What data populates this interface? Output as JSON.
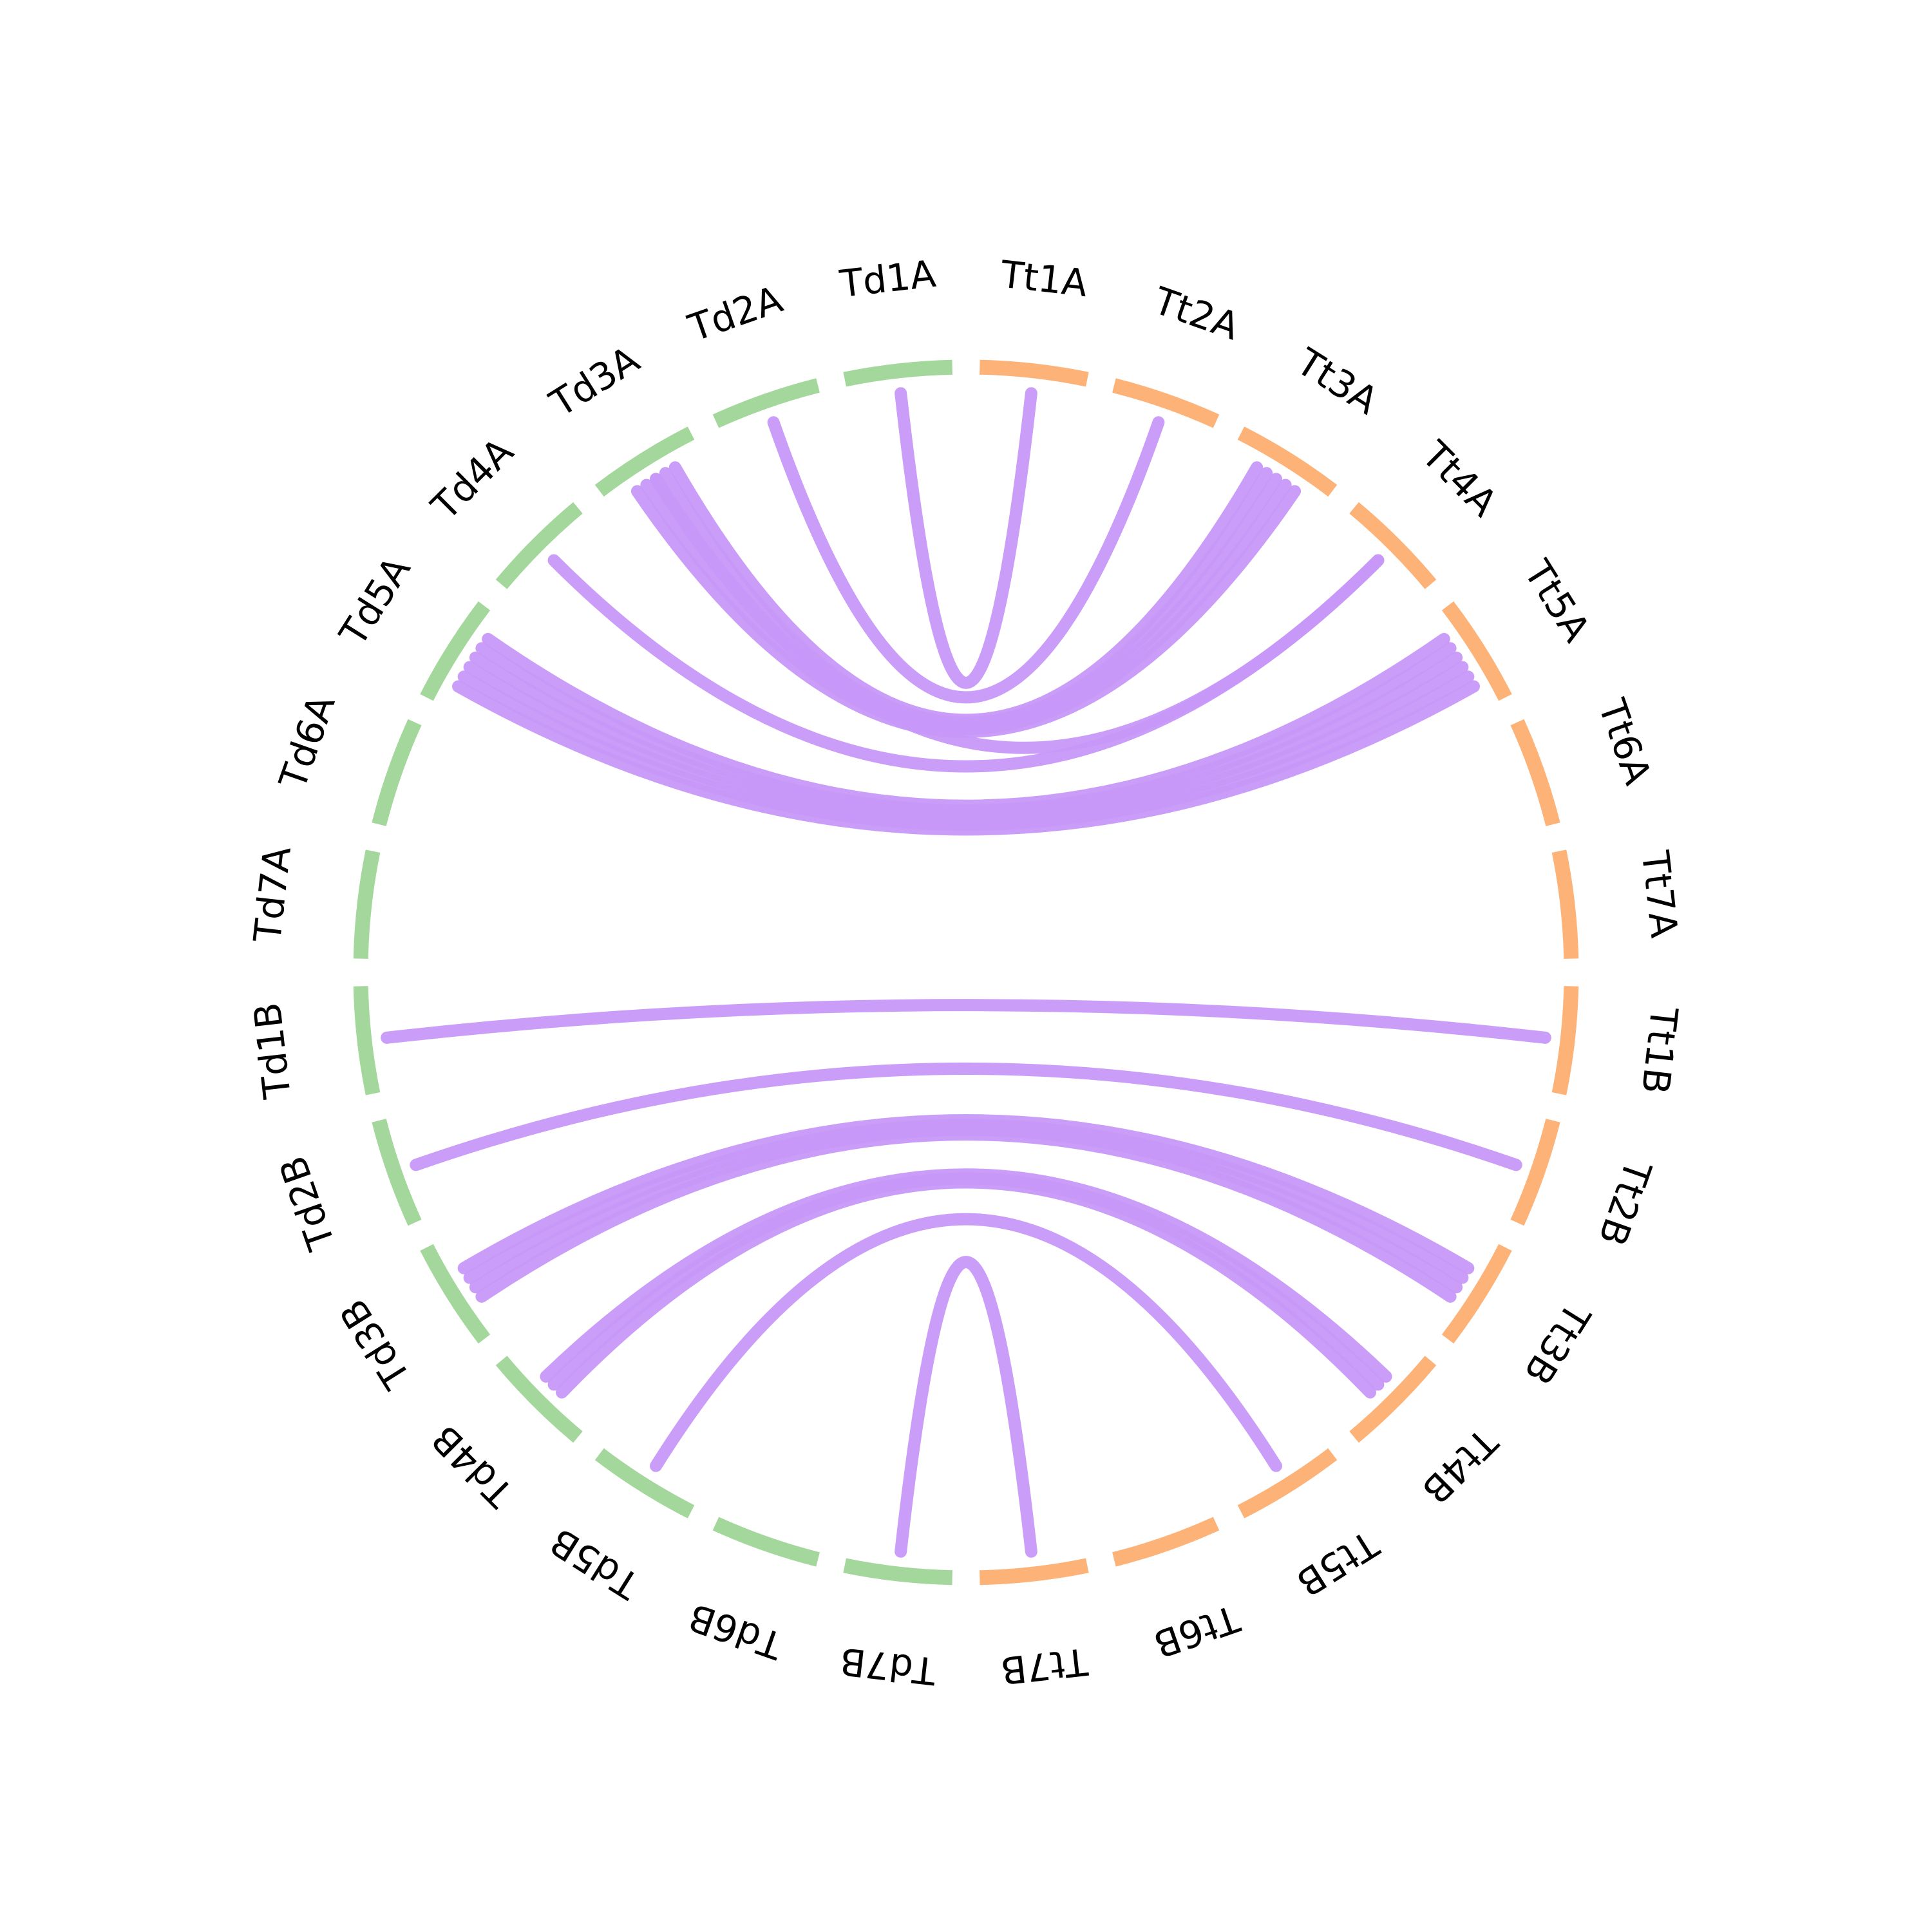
{
  "colors": {
    "genome_td": "#a3d79b",
    "genome_tt": "#fdb277",
    "link": "#c798f9"
  },
  "chromosomes": [
    {
      "id": "td1A",
      "label": "Td1A",
      "group": "td"
    },
    {
      "id": "td2A",
      "label": "Td2A",
      "group": "td"
    },
    {
      "id": "td3A",
      "label": "Td3A",
      "group": "td"
    },
    {
      "id": "td4A",
      "label": "Td4A",
      "group": "td"
    },
    {
      "id": "td5A",
      "label": "Td5A",
      "group": "td"
    },
    {
      "id": "td6A",
      "label": "Td6A",
      "group": "td"
    },
    {
      "id": "td7A",
      "label": "Td7A",
      "group": "td"
    },
    {
      "id": "td1B",
      "label": "Td1B",
      "group": "td"
    },
    {
      "id": "td2B",
      "label": "Td2B",
      "group": "td"
    },
    {
      "id": "td3B",
      "label": "Td3B",
      "group": "td"
    },
    {
      "id": "td4B",
      "label": "Td4B",
      "group": "td"
    },
    {
      "id": "td5B",
      "label": "Td5B",
      "group": "td"
    },
    {
      "id": "td6B",
      "label": "Td6B",
      "group": "td"
    },
    {
      "id": "td7B",
      "label": "Td7B",
      "group": "td"
    },
    {
      "id": "tt7B",
      "label": "Tt7B",
      "group": "tt"
    },
    {
      "id": "tt6B",
      "label": "Tt6B",
      "group": "tt"
    },
    {
      "id": "tt5B",
      "label": "Tt5B",
      "group": "tt"
    },
    {
      "id": "tt4B",
      "label": "Tt4B",
      "group": "tt"
    },
    {
      "id": "tt3B",
      "label": "Tt3B",
      "group": "tt"
    },
    {
      "id": "tt2B",
      "label": "Tt2B",
      "group": "tt"
    },
    {
      "id": "tt1B",
      "label": "Tt1B",
      "group": "tt"
    },
    {
      "id": "tt7A",
      "label": "Tt7A",
      "group": "tt"
    },
    {
      "id": "tt6A",
      "label": "Tt6A",
      "group": "tt"
    },
    {
      "id": "tt5A",
      "label": "Tt5A",
      "group": "tt"
    },
    {
      "id": "tt4A",
      "label": "Tt4A",
      "group": "tt"
    },
    {
      "id": "tt3A",
      "label": "Tt3A",
      "group": "tt"
    },
    {
      "id": "tt2A",
      "label": "Tt2A",
      "group": "tt"
    },
    {
      "id": "tt1A",
      "label": "Tt1A",
      "group": "tt"
    }
  ],
  "links": [
    {
      "from": "td1A",
      "to": "tt1A"
    },
    {
      "from": "td2A",
      "to": "tt2A"
    },
    {
      "from": "td3A",
      "to": "tt3A",
      "count": 5
    },
    {
      "from": "td3A",
      "to": "tt4A"
    },
    {
      "from": "td4A",
      "to": "tt4A"
    },
    {
      "from": "td5A",
      "to": "tt5A",
      "count": 6
    },
    {
      "from": "td1B",
      "to": "tt1B"
    },
    {
      "from": "td2B",
      "to": "tt2B"
    },
    {
      "from": "td3B",
      "to": "tt3B",
      "count": 4
    },
    {
      "from": "td4B",
      "to": "tt4B",
      "count": 3
    },
    {
      "from": "td5B",
      "to": "tt5B"
    },
    {
      "from": "td7B",
      "to": "tt7B"
    }
  ]
}
